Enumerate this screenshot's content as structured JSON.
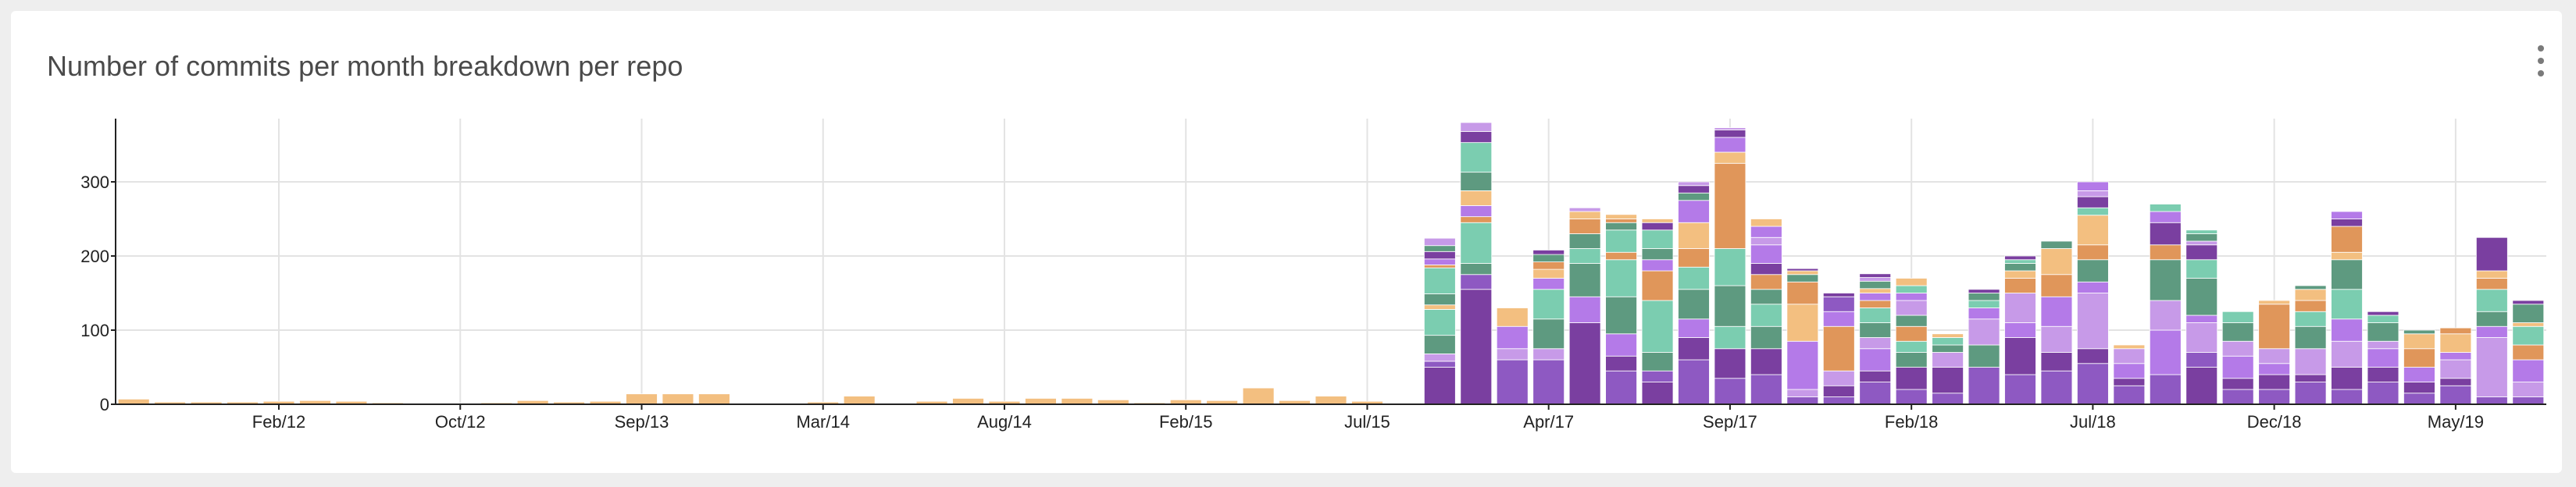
{
  "panel": {
    "title": "Number of commits per month breakdown per repo",
    "menu_icon": "kebab-menu-icon"
  },
  "chart_data": {
    "type": "bar",
    "stacked": true,
    "title": "Number of commits per month breakdown per repo",
    "xlabel": "",
    "ylabel": "",
    "ylim": [
      0,
      380
    ],
    "yticks": [
      0,
      100,
      200,
      300
    ],
    "grid": true,
    "legend": "none",
    "x_tick_labels": [
      "Feb/12",
      "Oct/12",
      "Sep/13",
      "Mar/14",
      "Aug/14",
      "Feb/15",
      "Jul/15",
      "Apr/17",
      "Sep/17",
      "Feb/18",
      "Jul/18",
      "Dec/18",
      "May/19"
    ],
    "x_tick_label_bar_index": [
      4,
      9,
      14,
      19,
      24,
      29,
      34,
      39,
      44,
      49,
      54,
      59,
      64
    ],
    "x_grid_bar_index": [
      4,
      9,
      14,
      19,
      24,
      29,
      34,
      39,
      44,
      49,
      54,
      59,
      64
    ],
    "palette": [
      "#8e59c2",
      "#7a3fa0",
      "#b47ae8",
      "#c79ae8",
      "#5e9a80",
      "#7bcdb0",
      "#e0965a",
      "#f3bf80"
    ],
    "stacks": [
      [
        [
          7,
          7
        ]
      ],
      [
        [
          7,
          3
        ]
      ],
      [
        [
          7,
          3
        ]
      ],
      [
        [
          7,
          3
        ]
      ],
      [
        [
          7,
          4
        ]
      ],
      [
        [
          7,
          5
        ]
      ],
      [
        [
          7,
          4
        ]
      ],
      [
        [
          7,
          2
        ]
      ],
      [
        [
          7,
          1
        ]
      ],
      [
        [
          7,
          1
        ]
      ],
      [
        [
          7,
          2
        ]
      ],
      [
        [
          7,
          5
        ]
      ],
      [
        [
          7,
          3
        ]
      ],
      [
        [
          7,
          4
        ]
      ],
      [
        [
          7,
          14
        ]
      ],
      [
        [
          7,
          14
        ]
      ],
      [
        [
          7,
          14
        ]
      ],
      [
        [
          7,
          1
        ]
      ],
      [
        [
          7,
          1
        ]
      ],
      [
        [
          7,
          3
        ]
      ],
      [
        [
          7,
          11
        ]
      ],
      [
        [
          7,
          1
        ]
      ],
      [
        [
          7,
          4
        ]
      ],
      [
        [
          7,
          8
        ]
      ],
      [
        [
          7,
          4
        ]
      ],
      [
        [
          7,
          8
        ]
      ],
      [
        [
          7,
          8
        ]
      ],
      [
        [
          7,
          6
        ]
      ],
      [
        [
          7,
          2
        ]
      ],
      [
        [
          7,
          6
        ]
      ],
      [
        [
          7,
          5
        ]
      ],
      [
        [
          7,
          22
        ]
      ],
      [
        [
          7,
          5
        ]
      ],
      [
        [
          7,
          11
        ]
      ],
      [
        [
          7,
          4
        ]
      ],
      [
        [
          7,
          1
        ]
      ],
      [
        [
          1,
          50
        ],
        [
          0,
          8
        ],
        [
          3,
          10
        ],
        [
          4,
          25
        ],
        [
          5,
          35
        ],
        [
          7,
          6
        ],
        [
          4,
          15
        ],
        [
          5,
          35
        ],
        [
          6,
          4
        ],
        [
          2,
          8
        ],
        [
          1,
          10
        ],
        [
          4,
          8
        ],
        [
          3,
          10
        ]
      ],
      [
        [
          1,
          155
        ],
        [
          0,
          20
        ],
        [
          4,
          15
        ],
        [
          5,
          55
        ],
        [
          6,
          8
        ],
        [
          2,
          15
        ],
        [
          7,
          20
        ],
        [
          4,
          25
        ],
        [
          5,
          40
        ],
        [
          1,
          15
        ],
        [
          3,
          12
        ]
      ],
      [
        [
          0,
          60
        ],
        [
          3,
          15
        ],
        [
          2,
          30
        ],
        [
          7,
          25
        ]
      ],
      [
        [
          0,
          60
        ],
        [
          3,
          15
        ],
        [
          4,
          40
        ],
        [
          5,
          40
        ],
        [
          2,
          15
        ],
        [
          7,
          12
        ],
        [
          6,
          10
        ],
        [
          4,
          10
        ],
        [
          1,
          6
        ]
      ],
      [
        [
          1,
          110
        ],
        [
          2,
          35
        ],
        [
          4,
          45
        ],
        [
          5,
          20
        ],
        [
          4,
          20
        ],
        [
          6,
          20
        ],
        [
          7,
          10
        ],
        [
          3,
          5
        ]
      ],
      [
        [
          0,
          45
        ],
        [
          1,
          20
        ],
        [
          2,
          30
        ],
        [
          4,
          50
        ],
        [
          5,
          50
        ],
        [
          6,
          10
        ],
        [
          5,
          30
        ],
        [
          4,
          10
        ],
        [
          6,
          5
        ],
        [
          7,
          6
        ]
      ],
      [
        [
          1,
          30
        ],
        [
          0,
          15
        ],
        [
          4,
          25
        ],
        [
          5,
          70
        ],
        [
          6,
          40
        ],
        [
          2,
          15
        ],
        [
          4,
          15
        ],
        [
          5,
          25
        ],
        [
          1,
          10
        ],
        [
          7,
          5
        ]
      ],
      [
        [
          0,
          60
        ],
        [
          1,
          30
        ],
        [
          2,
          25
        ],
        [
          4,
          40
        ],
        [
          5,
          30
        ],
        [
          6,
          25
        ],
        [
          7,
          35
        ],
        [
          2,
          30
        ],
        [
          4,
          10
        ],
        [
          1,
          10
        ],
        [
          3,
          5
        ]
      ],
      [
        [
          0,
          35
        ],
        [
          1,
          40
        ],
        [
          5,
          30
        ],
        [
          4,
          55
        ],
        [
          5,
          50
        ],
        [
          6,
          115
        ],
        [
          7,
          15
        ],
        [
          2,
          20
        ],
        [
          1,
          10
        ],
        [
          3,
          3
        ]
      ],
      [
        [
          0,
          40
        ],
        [
          1,
          35
        ],
        [
          4,
          30
        ],
        [
          5,
          30
        ],
        [
          4,
          20
        ],
        [
          6,
          20
        ],
        [
          1,
          15
        ],
        [
          2,
          25
        ],
        [
          3,
          10
        ],
        [
          2,
          15
        ],
        [
          7,
          10
        ]
      ],
      [
        [
          0,
          10
        ],
        [
          3,
          10
        ],
        [
          2,
          65
        ],
        [
          7,
          50
        ],
        [
          6,
          30
        ],
        [
          4,
          10
        ],
        [
          7,
          5
        ],
        [
          1,
          3
        ]
      ],
      [
        [
          0,
          10
        ],
        [
          1,
          15
        ],
        [
          3,
          20
        ],
        [
          6,
          60
        ],
        [
          2,
          20
        ],
        [
          0,
          20
        ],
        [
          1,
          5
        ]
      ],
      [
        [
          0,
          30
        ],
        [
          1,
          15
        ],
        [
          2,
          30
        ],
        [
          3,
          15
        ],
        [
          4,
          20
        ],
        [
          5,
          20
        ],
        [
          6,
          10
        ],
        [
          2,
          10
        ],
        [
          7,
          6
        ],
        [
          4,
          10
        ],
        [
          3,
          5
        ],
        [
          1,
          5
        ]
      ],
      [
        [
          0,
          20
        ],
        [
          1,
          30
        ],
        [
          4,
          20
        ],
        [
          5,
          15
        ],
        [
          6,
          20
        ],
        [
          4,
          15
        ],
        [
          3,
          20
        ],
        [
          2,
          10
        ],
        [
          5,
          10
        ],
        [
          7,
          10
        ]
      ],
      [
        [
          0,
          15
        ],
        [
          1,
          35
        ],
        [
          3,
          20
        ],
        [
          4,
          10
        ],
        [
          5,
          10
        ],
        [
          7,
          5
        ]
      ],
      [
        [
          0,
          50
        ],
        [
          4,
          30
        ],
        [
          3,
          35
        ],
        [
          2,
          15
        ],
        [
          5,
          10
        ],
        [
          4,
          10
        ],
        [
          1,
          5
        ]
      ],
      [
        [
          0,
          40
        ],
        [
          1,
          50
        ],
        [
          2,
          20
        ],
        [
          3,
          40
        ],
        [
          6,
          20
        ],
        [
          7,
          10
        ],
        [
          4,
          10
        ],
        [
          5,
          5
        ],
        [
          1,
          5
        ]
      ],
      [
        [
          0,
          45
        ],
        [
          1,
          25
        ],
        [
          3,
          35
        ],
        [
          2,
          40
        ],
        [
          6,
          30
        ],
        [
          7,
          35
        ],
        [
          4,
          10
        ]
      ],
      [
        [
          0,
          55
        ],
        [
          1,
          20
        ],
        [
          3,
          75
        ],
        [
          2,
          15
        ],
        [
          4,
          30
        ],
        [
          6,
          20
        ],
        [
          7,
          40
        ],
        [
          5,
          10
        ],
        [
          1,
          15
        ],
        [
          3,
          8
        ],
        [
          2,
          12
        ]
      ],
      [
        [
          0,
          25
        ],
        [
          1,
          10
        ],
        [
          2,
          20
        ],
        [
          3,
          20
        ],
        [
          7,
          5
        ]
      ],
      [
        [
          0,
          40
        ],
        [
          2,
          60
        ],
        [
          3,
          40
        ],
        [
          4,
          55
        ],
        [
          6,
          20
        ],
        [
          1,
          30
        ],
        [
          2,
          15
        ],
        [
          5,
          10
        ]
      ],
      [
        [
          1,
          50
        ],
        [
          0,
          20
        ],
        [
          3,
          40
        ],
        [
          2,
          10
        ],
        [
          4,
          50
        ],
        [
          5,
          25
        ],
        [
          1,
          20
        ],
        [
          3,
          5
        ],
        [
          4,
          10
        ],
        [
          5,
          5
        ]
      ],
      [
        [
          0,
          20
        ],
        [
          1,
          15
        ],
        [
          2,
          30
        ],
        [
          3,
          20
        ],
        [
          4,
          25
        ],
        [
          5,
          15
        ]
      ],
      [
        [
          0,
          20
        ],
        [
          1,
          20
        ],
        [
          2,
          15
        ],
        [
          3,
          20
        ],
        [
          6,
          60
        ],
        [
          7,
          5
        ]
      ],
      [
        [
          0,
          30
        ],
        [
          1,
          10
        ],
        [
          3,
          35
        ],
        [
          4,
          30
        ],
        [
          5,
          20
        ],
        [
          6,
          15
        ],
        [
          7,
          15
        ],
        [
          4,
          5
        ]
      ],
      [
        [
          0,
          20
        ],
        [
          1,
          30
        ],
        [
          3,
          35
        ],
        [
          2,
          30
        ],
        [
          5,
          40
        ],
        [
          4,
          40
        ],
        [
          7,
          10
        ],
        [
          6,
          35
        ],
        [
          1,
          10
        ],
        [
          2,
          10
        ]
      ],
      [
        [
          0,
          30
        ],
        [
          1,
          20
        ],
        [
          2,
          25
        ],
        [
          3,
          10
        ],
        [
          4,
          25
        ],
        [
          5,
          10
        ],
        [
          1,
          5
        ]
      ],
      [
        [
          0,
          15
        ],
        [
          1,
          15
        ],
        [
          2,
          20
        ],
        [
          6,
          25
        ],
        [
          7,
          20
        ],
        [
          4,
          5
        ]
      ],
      [
        [
          0,
          25
        ],
        [
          1,
          10
        ],
        [
          3,
          25
        ],
        [
          2,
          10
        ],
        [
          7,
          25
        ],
        [
          6,
          8
        ]
      ],
      [
        [
          0,
          10
        ],
        [
          3,
          80
        ],
        [
          2,
          15
        ],
        [
          4,
          20
        ],
        [
          5,
          30
        ],
        [
          6,
          15
        ],
        [
          7,
          10
        ],
        [
          1,
          45
        ]
      ],
      [
        [
          0,
          10
        ],
        [
          3,
          20
        ],
        [
          2,
          30
        ],
        [
          6,
          20
        ],
        [
          5,
          25
        ],
        [
          7,
          5
        ],
        [
          4,
          25
        ],
        [
          1,
          5
        ]
      ]
    ]
  }
}
